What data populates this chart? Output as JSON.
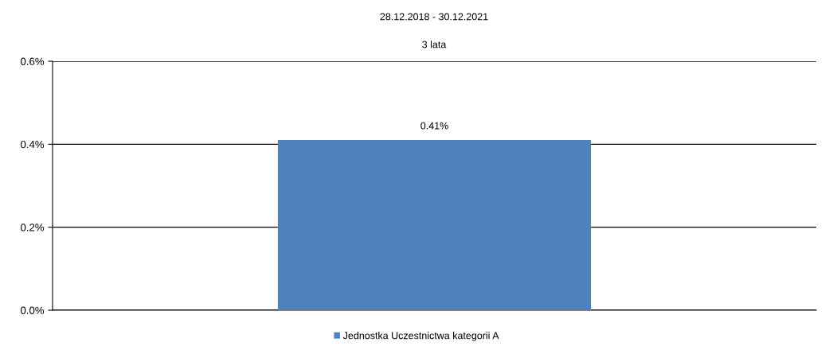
{
  "chart_data": {
    "type": "bar",
    "title": "28.12.2018 - 30.12.2021",
    "subtitle": "3 lata",
    "categories": [
      null
    ],
    "series": [
      {
        "name": "Jednostka Uczestnictwa kategorii A",
        "color": "#4f81bd",
        "values": [
          0.41
        ],
        "value_labels": [
          "0.41%"
        ]
      }
    ],
    "ylim": [
      0,
      0.6
    ],
    "yticks": [
      {
        "value": 0,
        "label": "0.0%"
      },
      {
        "value": 0.2,
        "label": "0.2%"
      },
      {
        "value": 0.4,
        "label": "0.4%"
      },
      {
        "value": 0.6,
        "label": "0.6%"
      }
    ],
    "grid": "y",
    "legend": "bottom"
  }
}
